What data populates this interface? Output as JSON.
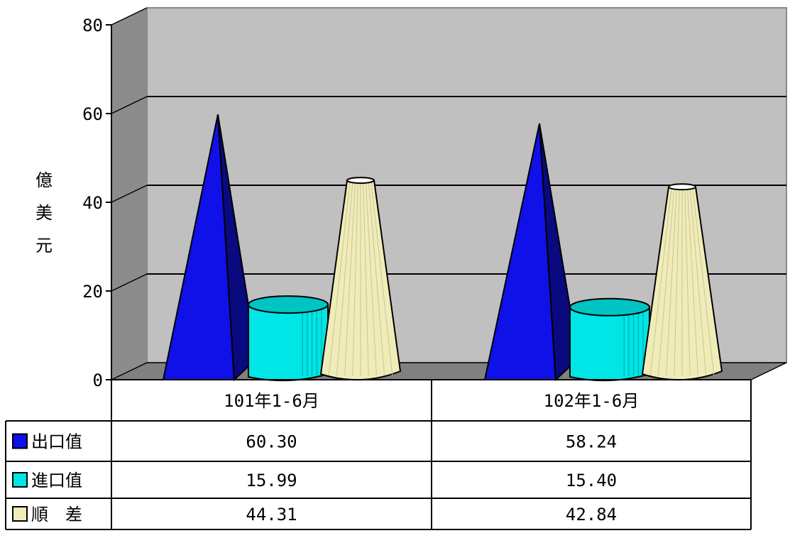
{
  "chart_data": {
    "type": "bar",
    "ylabel": "億美元",
    "ylim": [
      0,
      80
    ],
    "yticks": [
      "0",
      "20",
      "40",
      "60",
      "80"
    ],
    "categories": [
      "101年1-6月",
      "102年1-6月"
    ],
    "series": [
      {
        "name": "出口值",
        "values": [
          60.3,
          58.24
        ],
        "display": [
          "60.30",
          "58.24"
        ],
        "color": "#1010e8",
        "shape": "pyramid"
      },
      {
        "name": "進口值",
        "values": [
          15.99,
          15.4
        ],
        "display": [
          "15.99",
          "15.40"
        ],
        "color": "#00e5e5",
        "shape": "cylinder"
      },
      {
        "name": "順　差",
        "values": [
          44.31,
          42.84
        ],
        "display": [
          "44.31",
          "42.84"
        ],
        "color": "#f0ecb8",
        "shape": "cone"
      }
    ],
    "grid": true,
    "legend": "data-table"
  }
}
